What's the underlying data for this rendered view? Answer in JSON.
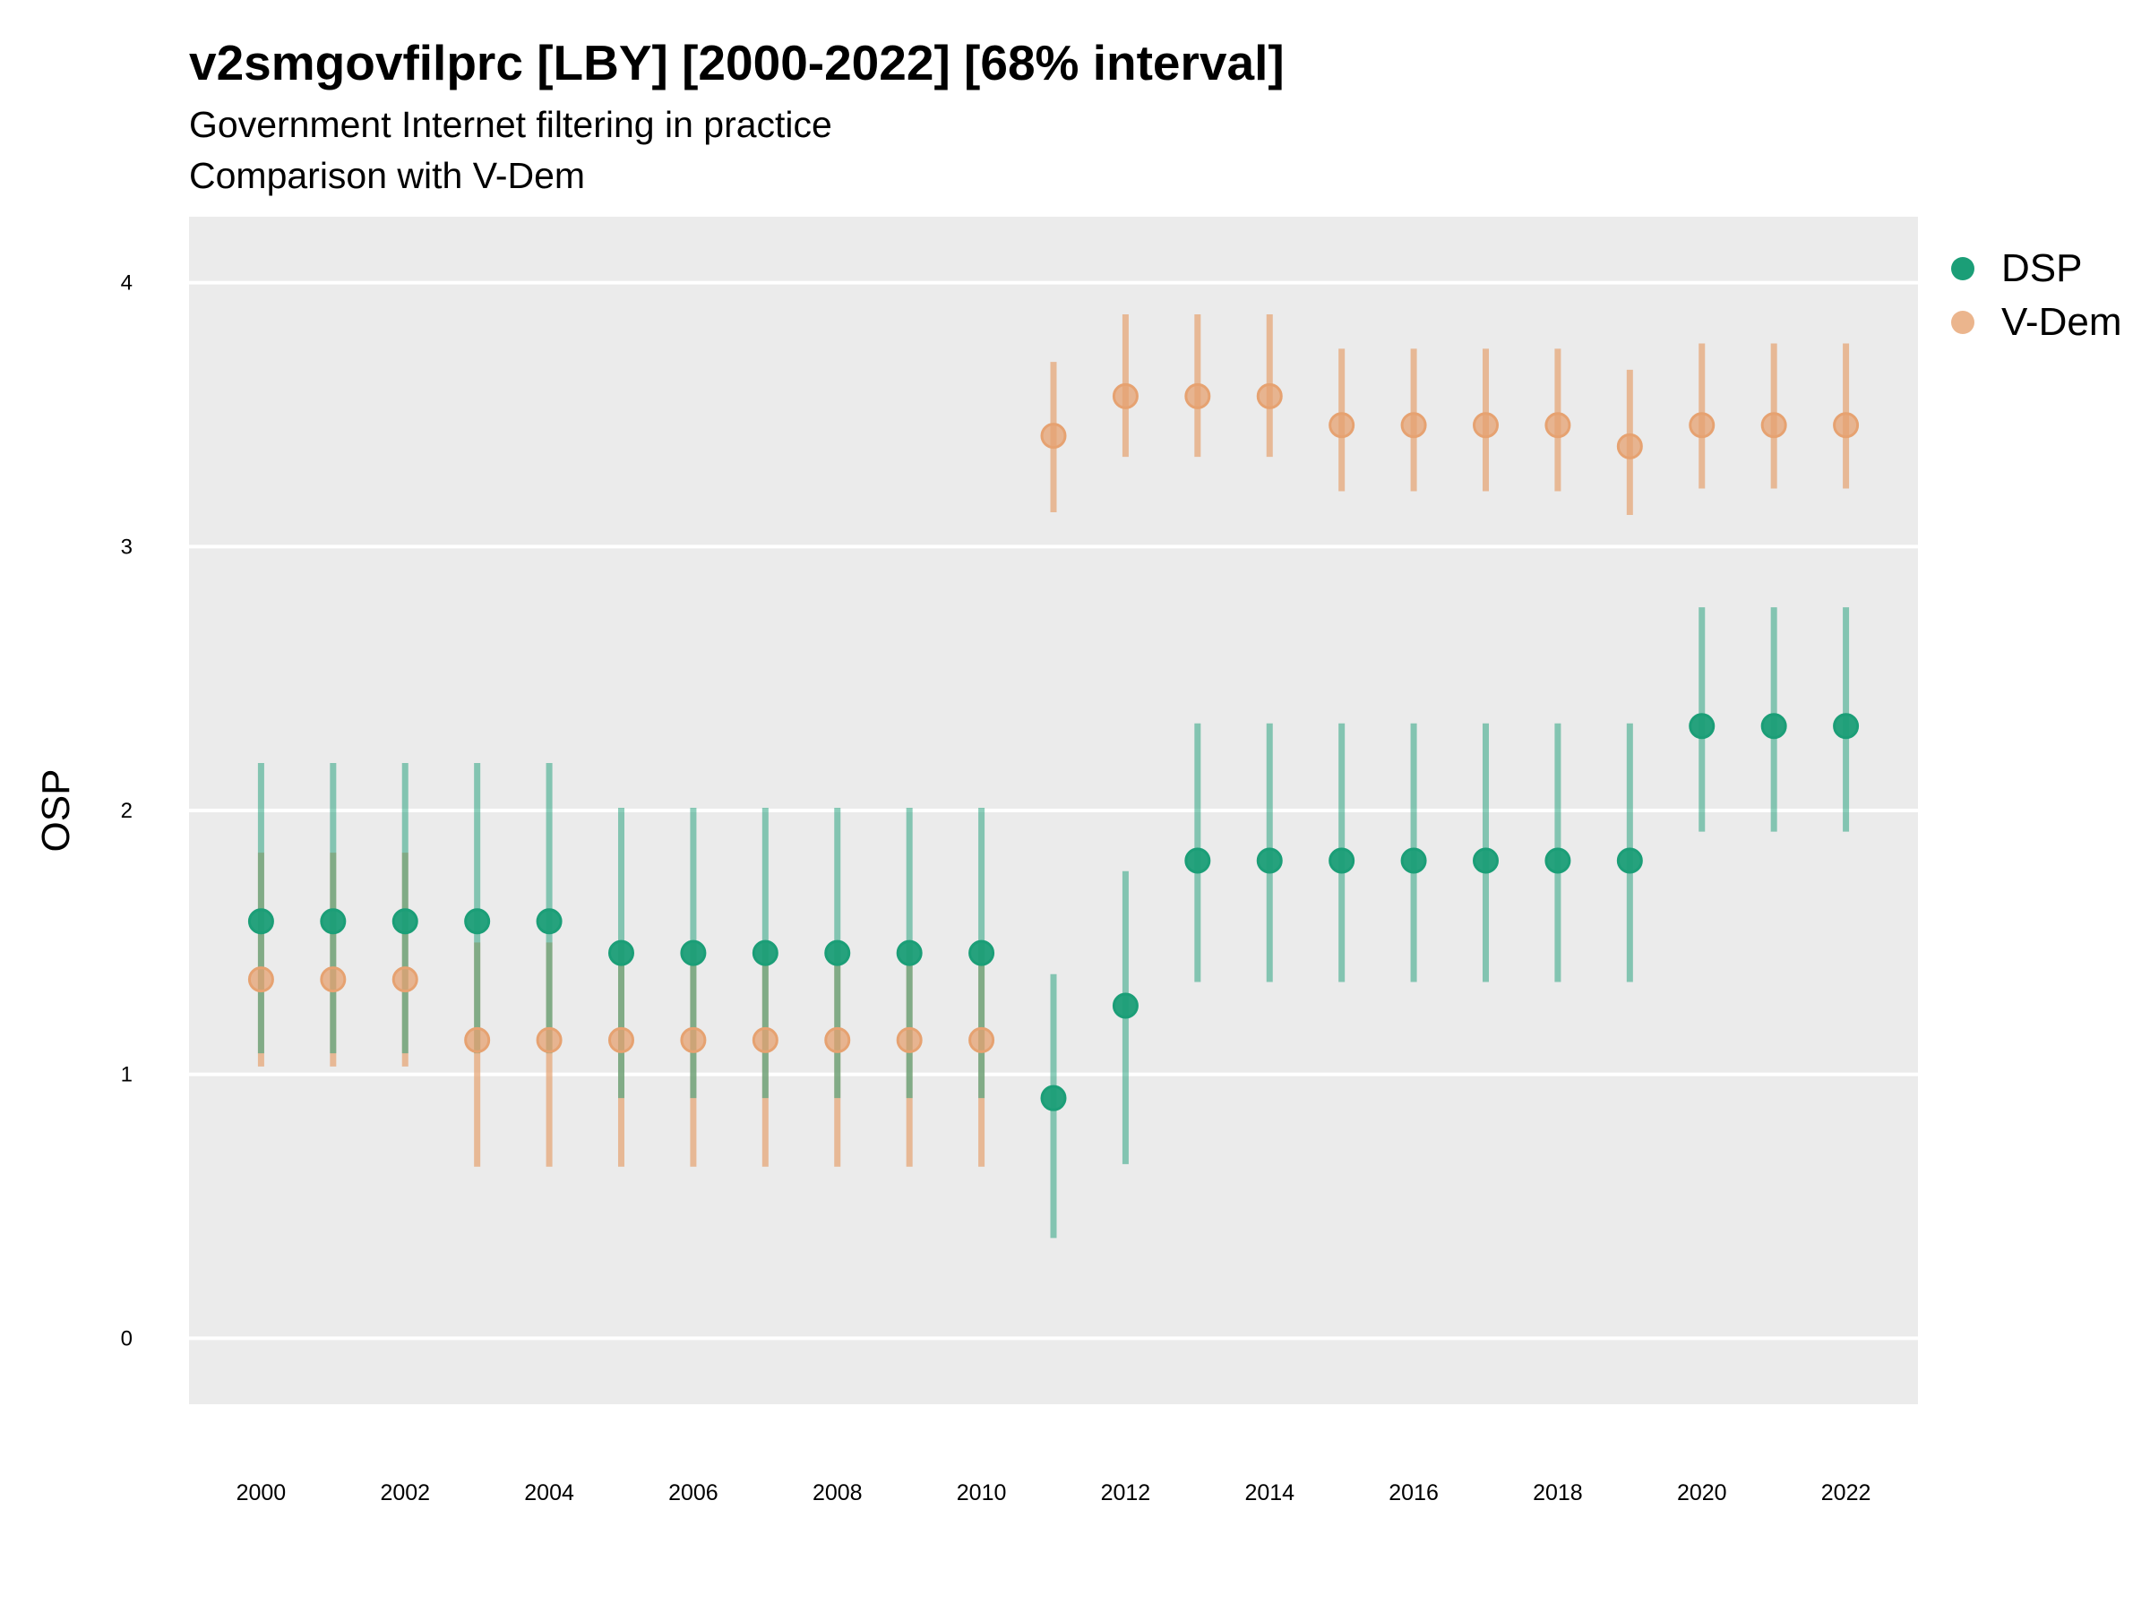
{
  "title": "v2smgovfilprc [LBY] [2000-2022] [68% interval]",
  "subtitle_1": "Government Internet filtering in practice",
  "subtitle_2": "Comparison with V-Dem",
  "colors": {
    "DSP": "#1b9e77",
    "V-Dem": "#e6a271",
    "panel": "#ebebeb",
    "grid": "#ffffff"
  },
  "chart_data": {
    "type": "scatter",
    "title": "v2smgovfilprc [LBY] [2000-2022] [68% interval]",
    "ylabel": "OSP",
    "xlabel": "",
    "xlim": [
      1999,
      2023
    ],
    "ylim": [
      -0.25,
      4.25
    ],
    "x_ticks": [
      2000,
      2002,
      2004,
      2006,
      2008,
      2010,
      2012,
      2014,
      2016,
      2018,
      2020,
      2022
    ],
    "y_ticks": [
      0,
      1,
      2,
      3,
      4
    ],
    "grid": true,
    "legend_position": "right",
    "series": [
      {
        "name": "DSP",
        "color": "#1b9e77",
        "x": [
          2000,
          2001,
          2002,
          2003,
          2004,
          2005,
          2006,
          2007,
          2008,
          2009,
          2010,
          2011,
          2012,
          2013,
          2014,
          2015,
          2016,
          2017,
          2018,
          2019,
          2020,
          2021,
          2022
        ],
        "y": [
          1.58,
          1.58,
          1.58,
          1.58,
          1.58,
          1.46,
          1.46,
          1.46,
          1.46,
          1.46,
          1.46,
          0.91,
          1.26,
          1.81,
          1.81,
          1.81,
          1.81,
          1.81,
          1.81,
          1.81,
          2.32,
          2.32,
          2.32
        ],
        "lower": [
          1.08,
          1.08,
          1.08,
          1.08,
          1.08,
          0.91,
          0.91,
          0.91,
          0.91,
          0.91,
          0.91,
          0.38,
          0.66,
          1.35,
          1.35,
          1.35,
          1.35,
          1.35,
          1.35,
          1.35,
          1.92,
          1.92,
          1.92
        ],
        "upper": [
          2.18,
          2.18,
          2.18,
          2.18,
          2.18,
          2.01,
          2.01,
          2.01,
          2.01,
          2.01,
          2.01,
          1.38,
          1.77,
          2.33,
          2.33,
          2.33,
          2.33,
          2.33,
          2.33,
          2.33,
          2.77,
          2.77,
          2.77
        ]
      },
      {
        "name": "V-Dem",
        "color": "#e6a271",
        "x": [
          2000,
          2001,
          2002,
          2003,
          2004,
          2005,
          2006,
          2007,
          2008,
          2009,
          2010,
          2011,
          2012,
          2013,
          2014,
          2015,
          2016,
          2017,
          2018,
          2019,
          2020,
          2021,
          2022
        ],
        "y": [
          1.36,
          1.36,
          1.36,
          1.13,
          1.13,
          1.13,
          1.13,
          1.13,
          1.13,
          1.13,
          1.13,
          3.42,
          3.57,
          3.57,
          3.57,
          3.46,
          3.46,
          3.46,
          3.46,
          3.38,
          3.46,
          3.46,
          3.46
        ],
        "lower": [
          1.03,
          1.03,
          1.03,
          0.65,
          0.65,
          0.65,
          0.65,
          0.65,
          0.65,
          0.65,
          0.65,
          3.13,
          3.34,
          3.34,
          3.34,
          3.21,
          3.21,
          3.21,
          3.21,
          3.12,
          3.22,
          3.22,
          3.22
        ],
        "upper": [
          1.84,
          1.84,
          1.84,
          1.5,
          1.5,
          1.5,
          1.5,
          1.5,
          1.5,
          1.5,
          1.5,
          3.7,
          3.88,
          3.88,
          3.88,
          3.75,
          3.75,
          3.75,
          3.75,
          3.67,
          3.77,
          3.77,
          3.77
        ]
      }
    ]
  }
}
